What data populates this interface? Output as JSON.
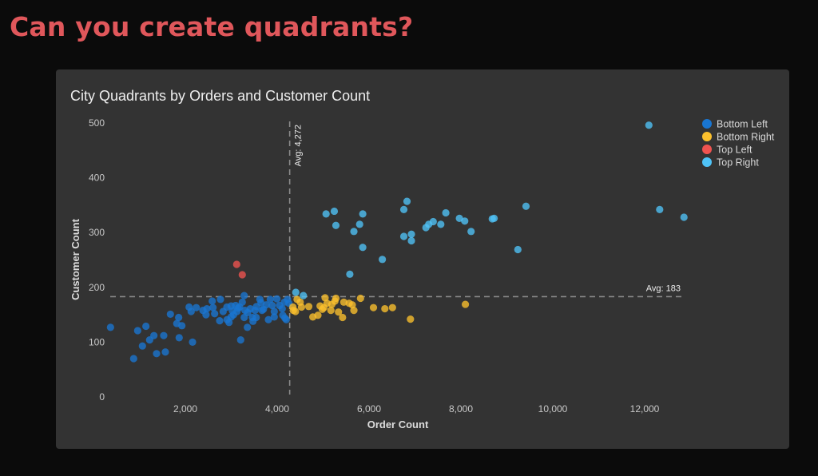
{
  "page": {
    "heading": "Can you create quadrants?"
  },
  "chart_data": {
    "type": "scatter",
    "title": "City Quadrants by Orders and Customer Count",
    "xlabel": "Order Count",
    "ylabel": "Customer Count",
    "xlim": [
      0,
      13000
    ],
    "ylim": [
      0,
      500
    ],
    "x_ticks": [
      {
        "v": 2000,
        "label": "2,000"
      },
      {
        "v": 4000,
        "label": "4,000"
      },
      {
        "v": 6000,
        "label": "6,000"
      },
      {
        "v": 8000,
        "label": "8,000"
      },
      {
        "v": 10000,
        "label": "10,000"
      },
      {
        "v": 12000,
        "label": "12,000"
      }
    ],
    "y_ticks": [
      {
        "v": 0,
        "label": "0"
      },
      {
        "v": 100,
        "label": "100"
      },
      {
        "v": 200,
        "label": "200"
      },
      {
        "v": 300,
        "label": "300"
      },
      {
        "v": 400,
        "label": "400"
      },
      {
        "v": 500,
        "label": "500"
      }
    ],
    "grid": false,
    "legend_position": "top-right",
    "reference_lines": {
      "x_avg": {
        "value": 4272,
        "label": "Avg: 4,272"
      },
      "y_avg": {
        "value": 183,
        "label": "Avg: 183"
      }
    },
    "series": [
      {
        "name": "Bottom Left",
        "color": "#1976d2",
        "points": [
          [
            371,
            127
          ],
          [
            875,
            70
          ],
          [
            962,
            121
          ],
          [
            1066,
            93
          ],
          [
            1142,
            129
          ],
          [
            1223,
            104
          ],
          [
            1316,
            112
          ],
          [
            1374,
            79
          ],
          [
            1530,
            112
          ],
          [
            1565,
            82
          ],
          [
            1675,
            151
          ],
          [
            1814,
            134
          ],
          [
            1855,
            145
          ],
          [
            1925,
            130
          ],
          [
            1866,
            108
          ],
          [
            2157,
            100
          ],
          [
            2082,
            164
          ],
          [
            2127,
            156
          ],
          [
            2238,
            163
          ],
          [
            2383,
            158
          ],
          [
            2470,
            161
          ],
          [
            2603,
            163
          ],
          [
            2586,
            175
          ],
          [
            2638,
            152
          ],
          [
            2765,
            178
          ],
          [
            2748,
            139
          ],
          [
            2823,
            156
          ],
          [
            2910,
            141
          ],
          [
            2951,
            136
          ],
          [
            2997,
            146
          ],
          [
            2904,
            164
          ],
          [
            2997,
            166
          ],
          [
            3096,
            167
          ],
          [
            3183,
            164
          ],
          [
            3125,
            156
          ],
          [
            3026,
            157
          ],
          [
            3205,
            104
          ],
          [
            3240,
            173
          ],
          [
            3282,
            185
          ],
          [
            3299,
            158
          ],
          [
            3357,
            154
          ],
          [
            3282,
            145
          ],
          [
            3351,
            127
          ],
          [
            3414,
            161
          ],
          [
            3518,
            158
          ],
          [
            3461,
            145
          ],
          [
            3473,
            138
          ],
          [
            3543,
            145
          ],
          [
            3623,
            178
          ],
          [
            3647,
            172
          ],
          [
            3670,
            158
          ],
          [
            3762,
            168
          ],
          [
            3849,
            178
          ],
          [
            3890,
            167
          ],
          [
            3994,
            179
          ],
          [
            3936,
            156
          ],
          [
            3936,
            146
          ],
          [
            3809,
            141
          ],
          [
            4052,
            167
          ],
          [
            4110,
            161
          ],
          [
            4122,
            149
          ],
          [
            4168,
            144
          ],
          [
            4197,
            141
          ],
          [
            4157,
            173
          ],
          [
            4226,
            178
          ],
          [
            4255,
            171
          ],
          [
            3550,
            165
          ],
          [
            3700,
            160
          ],
          [
            3150,
            162
          ],
          [
            2450,
            150
          ],
          [
            3050,
            150
          ]
        ]
      },
      {
        "name": "Bottom Right",
        "color": "#fbc02d",
        "points": [
          [
            5043,
            181
          ],
          [
            5278,
            180
          ],
          [
            5814,
            180
          ],
          [
            4687,
            165
          ],
          [
            4934,
            166
          ],
          [
            5085,
            171
          ],
          [
            5190,
            169
          ],
          [
            5257,
            175
          ],
          [
            5450,
            173
          ],
          [
            5567,
            171
          ],
          [
            5635,
            168
          ],
          [
            5670,
            158
          ],
          [
            5334,
            155
          ],
          [
            5169,
            158
          ],
          [
            4983,
            160
          ],
          [
            4776,
            146
          ],
          [
            4887,
            149
          ],
          [
            5423,
            145
          ],
          [
            6096,
            163
          ],
          [
            6344,
            161
          ],
          [
            6510,
            163
          ],
          [
            6901,
            142
          ],
          [
            8097,
            169
          ],
          [
            4433,
            178
          ],
          [
            4501,
            173
          ],
          [
            4529,
            164
          ],
          [
            4343,
            164
          ],
          [
            4398,
            156
          ],
          [
            4350,
            158
          ],
          [
            5017,
            163
          ]
        ]
      },
      {
        "name": "Top Left",
        "color": "#ef5350",
        "points": [
          [
            3118,
            242
          ],
          [
            3240,
            223
          ]
        ]
      },
      {
        "name": "Top Right",
        "color": "#4fc3f7",
        "points": [
          [
            5064,
            334
          ],
          [
            5243,
            339
          ],
          [
            5278,
            313
          ],
          [
            5863,
            334
          ],
          [
            5795,
            315
          ],
          [
            5670,
            302
          ],
          [
            5863,
            273
          ],
          [
            5581,
            224
          ],
          [
            6289,
            251
          ],
          [
            6757,
            342
          ],
          [
            6826,
            357
          ],
          [
            6757,
            293
          ],
          [
            6922,
            297
          ],
          [
            6922,
            285
          ],
          [
            7238,
            309
          ],
          [
            7299,
            315
          ],
          [
            7397,
            320
          ],
          [
            7562,
            315
          ],
          [
            7671,
            336
          ],
          [
            7967,
            326
          ],
          [
            8083,
            321
          ],
          [
            8221,
            302
          ],
          [
            8682,
            325
          ],
          [
            8723,
            326
          ],
          [
            9240,
            269
          ],
          [
            9417,
            348
          ],
          [
            12092,
            496
          ],
          [
            12327,
            342
          ],
          [
            12856,
            328
          ],
          [
            4405,
            191
          ],
          [
            4570,
            185
          ]
        ]
      }
    ]
  }
}
